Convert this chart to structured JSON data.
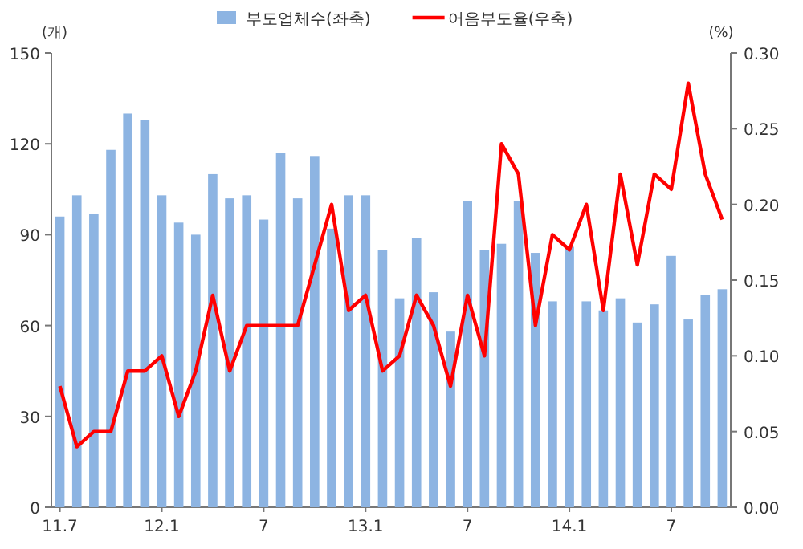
{
  "chart_data": {
    "type": "bar",
    "ylabel": "(개)",
    "y2label": "(%)",
    "legend": "top",
    "grid": false,
    "categories": [
      "11.7",
      null,
      null,
      null,
      null,
      null,
      "12.1",
      null,
      null,
      null,
      null,
      null,
      "7",
      null,
      null,
      null,
      null,
      null,
      "13.1",
      null,
      null,
      null,
      null,
      null,
      "7",
      null,
      null,
      null,
      null,
      null,
      "14.1",
      null,
      null,
      null,
      null,
      null,
      "7",
      null,
      null,
      null
    ],
    "series": [
      {
        "name": "부도업체수(좌축)",
        "color": "#8db4e2",
        "values": [
          96,
          103,
          97,
          118,
          130,
          128,
          103,
          94,
          90,
          110,
          102,
          103,
          95,
          117,
          102,
          116,
          92,
          103,
          103,
          85,
          69,
          89,
          71,
          58,
          101,
          85,
          87,
          101,
          84,
          68,
          86,
          68,
          65,
          69,
          61,
          67,
          83,
          62,
          70,
          72
        ]
      },
      {
        "name": "어음부도율(우축)",
        "type": "line",
        "axis": "y2",
        "color": "#ff0000",
        "values": [
          0.08,
          0.04,
          0.05,
          0.05,
          0.09,
          0.09,
          0.1,
          0.06,
          0.09,
          0.14,
          0.09,
          0.12,
          0.12,
          0.12,
          0.12,
          0.16,
          0.2,
          0.13,
          0.14,
          0.09,
          0.1,
          0.14,
          0.12,
          0.08,
          0.14,
          0.1,
          0.24,
          0.22,
          0.12,
          0.18,
          0.17,
          0.2,
          0.13,
          0.22,
          0.16,
          0.22,
          0.21,
          0.28,
          0.22,
          0.19
        ]
      }
    ],
    "ylim": [
      0,
      150
    ],
    "yticks": [
      0,
      30,
      60,
      90,
      120,
      150
    ],
    "y2lim": [
      0,
      0.3
    ],
    "y2ticks": [
      {
        "value": 0,
        "label": "0.00"
      },
      {
        "value": 0.05,
        "label": "0.05"
      },
      {
        "value": 0.1,
        "label": "0.10"
      },
      {
        "value": 0.15,
        "label": "0.15"
      },
      {
        "value": 0.2,
        "label": "0.20"
      },
      {
        "value": 0.25,
        "label": "0.25"
      },
      {
        "value": 0.3,
        "label": "0.30"
      }
    ]
  }
}
